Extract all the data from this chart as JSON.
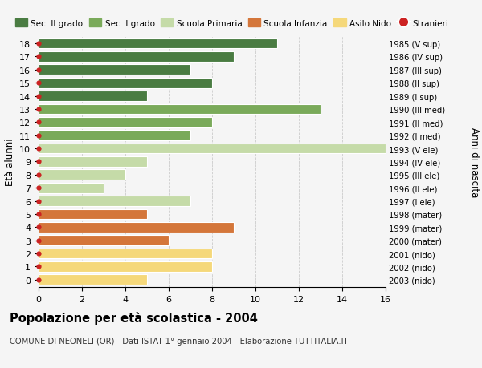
{
  "ages": [
    18,
    17,
    16,
    15,
    14,
    13,
    12,
    11,
    10,
    9,
    8,
    7,
    6,
    5,
    4,
    3,
    2,
    1,
    0
  ],
  "years": [
    "1985 (V sup)",
    "1986 (IV sup)",
    "1987 (III sup)",
    "1988 (II sup)",
    "1989 (I sup)",
    "1990 (III med)",
    "1991 (II med)",
    "1992 (I med)",
    "1993 (V ele)",
    "1994 (IV ele)",
    "1995 (III ele)",
    "1996 (II ele)",
    "1997 (I ele)",
    "1998 (mater)",
    "1999 (mater)",
    "2000 (mater)",
    "2001 (nido)",
    "2002 (nido)",
    "2003 (nido)"
  ],
  "values": [
    11,
    9,
    7,
    8,
    5,
    13,
    8,
    7,
    16,
    5,
    4,
    3,
    7,
    5,
    9,
    6,
    8,
    8,
    5
  ],
  "colors": [
    "#4a7c42",
    "#4a7c42",
    "#4a7c42",
    "#4a7c42",
    "#4a7c42",
    "#7aaa5a",
    "#7aaa5a",
    "#7aaa5a",
    "#c5dba8",
    "#c5dba8",
    "#c5dba8",
    "#c5dba8",
    "#c5dba8",
    "#d4763a",
    "#d4763a",
    "#d4763a",
    "#f5d87a",
    "#f5d87a",
    "#f5d87a"
  ],
  "legend_labels": [
    "Sec. II grado",
    "Sec. I grado",
    "Scuola Primaria",
    "Scuola Infanzia",
    "Asilo Nido",
    "Stranieri"
  ],
  "legend_colors": [
    "#4a7c42",
    "#7aaa5a",
    "#c5dba8",
    "#d4763a",
    "#f5d87a",
    "#cc2222"
  ],
  "legend_is_circle": [
    false,
    false,
    false,
    false,
    false,
    true
  ],
  "dot_color": "#cc2222",
  "title": "Popolazione per età scolastica - 2004",
  "subtitle": "COMUNE DI NEONELI (OR) - Dati ISTAT 1° gennaio 2004 - Elaborazione TUTTITALIA.IT",
  "ylabel_left": "Età alunni",
  "ylabel_right": "Anni di nascita",
  "xlim": [
    0,
    16
  ],
  "xticks": [
    0,
    2,
    4,
    6,
    8,
    10,
    12,
    14,
    16
  ],
  "background_color": "#f5f5f5",
  "grid_color": "#cccccc",
  "bar_height": 0.78,
  "bar_gap_color": "white"
}
